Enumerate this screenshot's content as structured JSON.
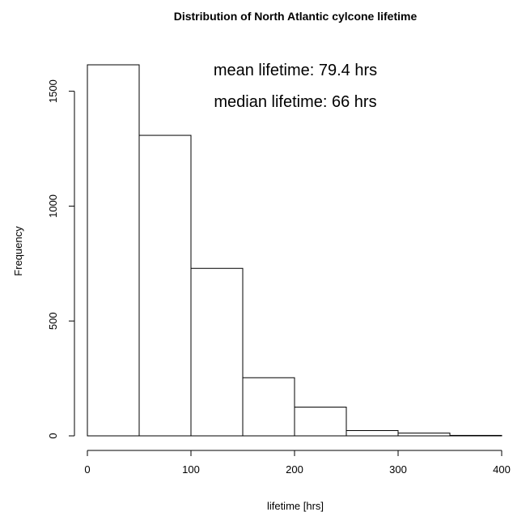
{
  "chart_data": {
    "type": "bar",
    "title": "Distribution of North Atlantic cylcone lifetime",
    "xlabel": "lifetime [hrs]",
    "ylabel": "Frequency",
    "bins": [
      [
        0,
        50
      ],
      [
        50,
        100
      ],
      [
        100,
        150
      ],
      [
        150,
        200
      ],
      [
        200,
        250
      ],
      [
        250,
        300
      ],
      [
        300,
        350
      ],
      [
        350,
        400
      ]
    ],
    "values": [
      1615,
      1308,
      729,
      253,
      125,
      23,
      12,
      2
    ],
    "xlim": [
      0,
      400
    ],
    "ylim": [
      0,
      1615
    ],
    "x_ticks": [
      0,
      100,
      200,
      300,
      400
    ],
    "y_ticks": [
      0,
      500,
      1000,
      1500
    ],
    "annotations": [
      "mean lifetime: 79.4 hrs",
      "median lifetime: 66 hrs"
    ],
    "grid": false,
    "bar_fill": "#ffffff",
    "bar_stroke": "#000000"
  }
}
